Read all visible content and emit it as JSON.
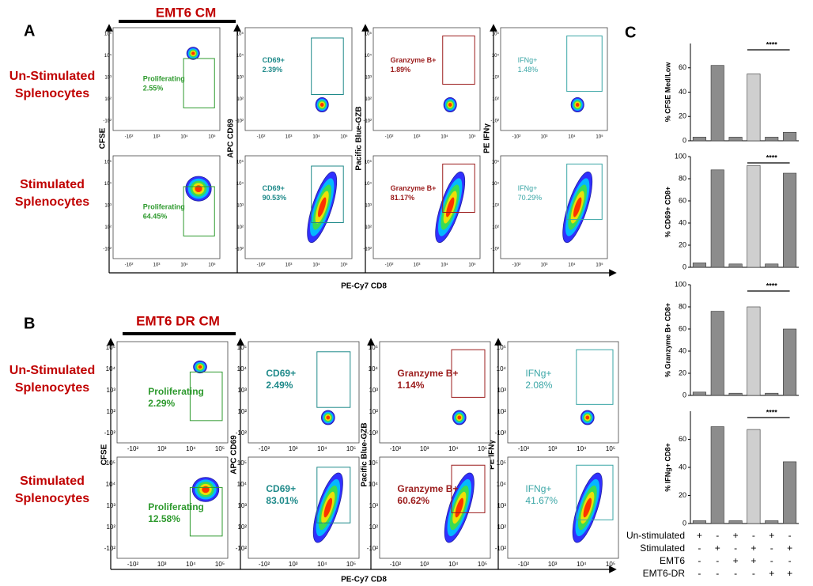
{
  "panels": [
    {
      "letter": "A",
      "title": "EMT6 CM",
      "rows": [
        [
          "Un-Stimulated",
          "Splenocytes"
        ],
        [
          "Stimulated",
          "Splenocytes"
        ]
      ],
      "y_labels": [
        "CFSE",
        "APC CD69",
        "Pacific Blue-GZB",
        "PE IFNγ"
      ],
      "x_label": "PE-Cy7 CD8",
      "gates": [
        [
          {
            "name": "Proliferating",
            "pct": "2.55%"
          },
          {
            "name": "CD69+",
            "pct": "2.39%"
          },
          {
            "name": "Granzyme B+",
            "pct": "1.89%"
          },
          {
            "name": "IFNg+",
            "pct": "1.48%"
          }
        ],
        [
          {
            "name": "Proliferating",
            "pct": "64.45%"
          },
          {
            "name": "CD69+",
            "pct": "90.53%"
          },
          {
            "name": "Granzyme B+",
            "pct": "81.17%"
          },
          {
            "name": "IFNg+",
            "pct": "70.29%"
          }
        ]
      ]
    },
    {
      "letter": "B",
      "title": "EMT6 DR CM",
      "rows": [
        [
          "Un-Stimulated",
          "Splenocytes"
        ],
        [
          "Stimulated",
          "Splenocytes"
        ]
      ],
      "y_labels": [
        "CFSE",
        "APC CD69",
        "Pacific Blue-GZB",
        "PE IFNγ"
      ],
      "x_label": "PE-Cy7 CD8",
      "gates": [
        [
          {
            "name": "Proliferating",
            "pct": "2.29%"
          },
          {
            "name": "CD69+",
            "pct": "2.49%"
          },
          {
            "name": "Granzyme B+",
            "pct": "1.14%"
          },
          {
            "name": "IFNg+",
            "pct": "2.08%"
          }
        ],
        [
          {
            "name": "Proliferating",
            "pct": "12.58%"
          },
          {
            "name": "CD69+",
            "pct": "83.01%"
          },
          {
            "name": "Granzyme B+",
            "pct": "60.62%"
          },
          {
            "name": "IFNg+",
            "pct": "41.67%"
          }
        ]
      ]
    }
  ],
  "flow_ticks": {
    "y": [
      "10⁵",
      "10⁴",
      "10³",
      "10²",
      "-10²"
    ],
    "x": [
      "-10²",
      "10³",
      "10⁴",
      "10⁵"
    ]
  },
  "panel_c_letter": "C",
  "chart_data": [
    {
      "type": "bar",
      "ylabel": "% CFSE Med/Low",
      "values": [
        3,
        62,
        3,
        55,
        3,
        7
      ],
      "colors": [
        "#8c8c8c",
        "#8c8c8c",
        "#8c8c8c",
        "#cfcfcf",
        "#8c8c8c",
        "#8c8c8c"
      ],
      "ylim": [
        0,
        80
      ],
      "yticks": [
        0,
        20,
        40,
        60
      ],
      "significance": "****"
    },
    {
      "type": "bar",
      "ylabel": "% CD69+ CD8+",
      "values": [
        4,
        88,
        3,
        92,
        3,
        85
      ],
      "colors": [
        "#8c8c8c",
        "#8c8c8c",
        "#8c8c8c",
        "#cfcfcf",
        "#8c8c8c",
        "#8c8c8c"
      ],
      "ylim": [
        0,
        100
      ],
      "yticks": [
        0,
        20,
        40,
        60,
        80,
        100
      ],
      "significance": "****"
    },
    {
      "type": "bar",
      "ylabel": "% Granzyme B+ CD8+",
      "values": [
        3,
        76,
        2,
        80,
        2,
        60
      ],
      "colors": [
        "#8c8c8c",
        "#8c8c8c",
        "#8c8c8c",
        "#cfcfcf",
        "#8c8c8c",
        "#8c8c8c"
      ],
      "ylim": [
        0,
        100
      ],
      "yticks": [
        0,
        20,
        40,
        60,
        80,
        100
      ],
      "significance": "****"
    },
    {
      "type": "bar",
      "ylabel": "% IFNg+ CD8+",
      "values": [
        2,
        69,
        2,
        67,
        2,
        44
      ],
      "colors": [
        "#8c8c8c",
        "#8c8c8c",
        "#8c8c8c",
        "#cfcfcf",
        "#8c8c8c",
        "#8c8c8c"
      ],
      "ylim": [
        0,
        80
      ],
      "yticks": [
        0,
        20,
        40,
        60
      ],
      "significance": "****"
    }
  ],
  "conditions": [
    {
      "label": "Un-stimulated",
      "signs": [
        "+",
        "-",
        "+",
        "-",
        "+",
        "-"
      ]
    },
    {
      "label": "Stimulated",
      "signs": [
        "-",
        "+",
        "-",
        "+",
        "-",
        "+"
      ]
    },
    {
      "label": "EMT6",
      "signs": [
        "-",
        "-",
        "+",
        "+",
        "-",
        "-"
      ]
    },
    {
      "label": "EMT6-DR",
      "signs": [
        "-",
        "-",
        "-",
        "-",
        "+",
        "+"
      ]
    }
  ]
}
